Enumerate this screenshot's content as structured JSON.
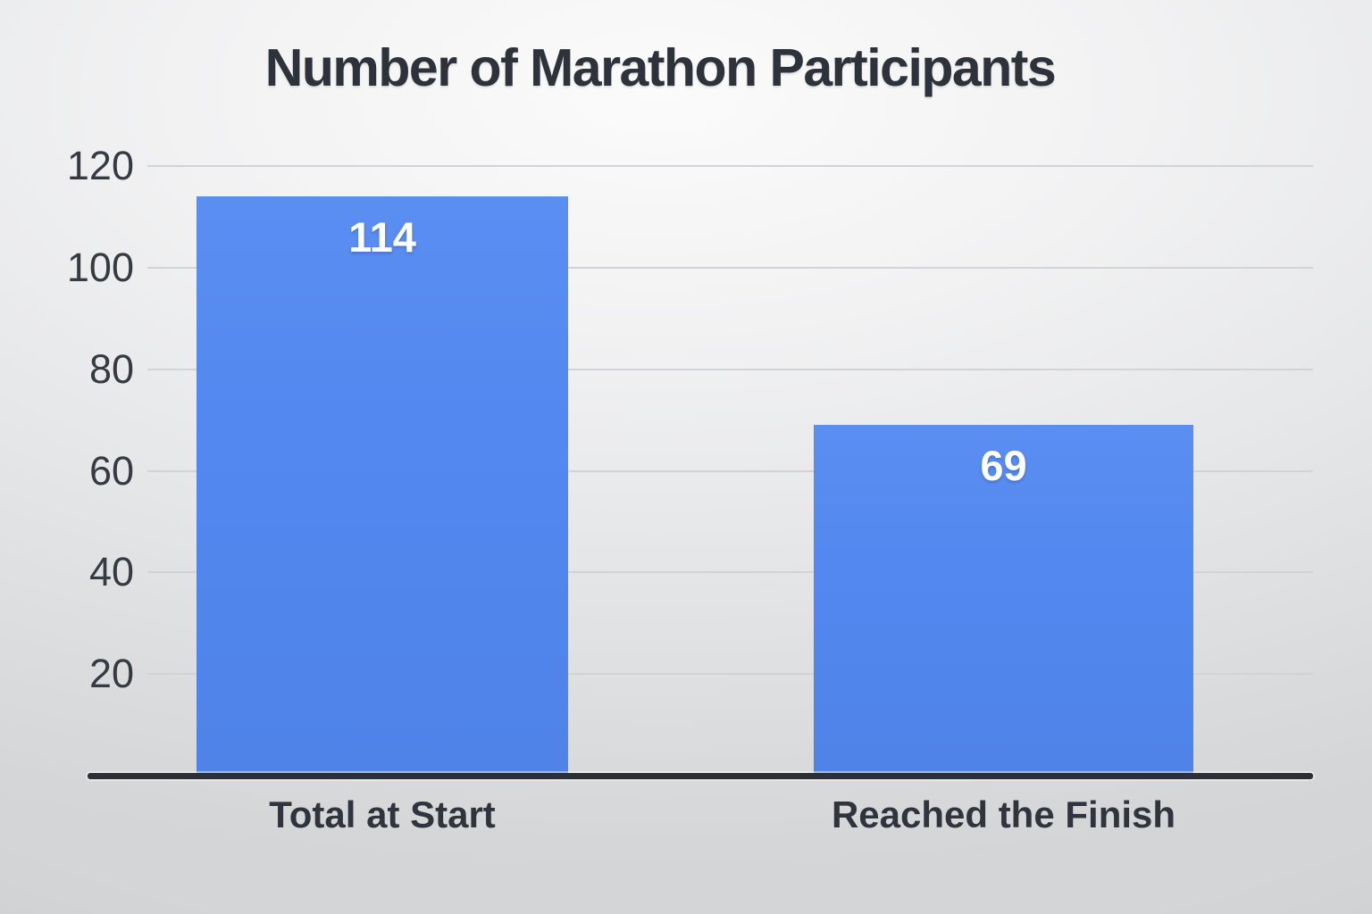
{
  "chart_data": {
    "type": "bar",
    "title": "Number of Marathon Participants",
    "categories": [
      "Total at Start",
      "Reached the Finish"
    ],
    "values": [
      114,
      69
    ],
    "bar_labels": [
      "114",
      "69"
    ],
    "yticks": [
      120,
      100,
      80,
      60,
      40,
      20
    ],
    "ylim": [
      0,
      122
    ],
    "xlabel": "",
    "ylabel": "",
    "grid": true,
    "legend": false,
    "colors": {
      "bar": "#5288f0",
      "bar_value_text": "#ffffff",
      "gridline": "#d2d3d6",
      "axis_line": "#2c3036",
      "title_text": "#2e323b",
      "tick_text": "#363a42"
    }
  }
}
